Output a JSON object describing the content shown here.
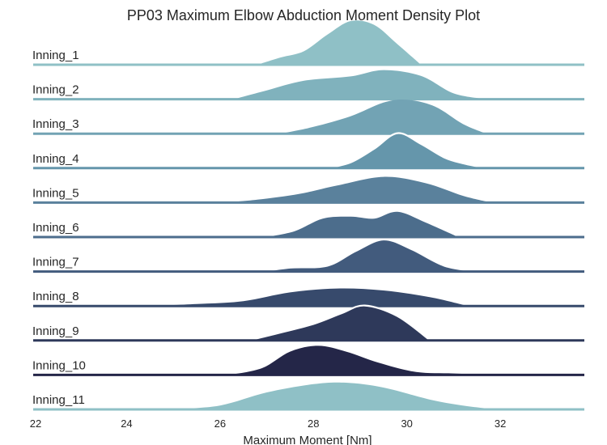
{
  "chart_data": {
    "type": "ridgeline-density",
    "title": "PP03 Maximum Elbow Abduction Moment Density Plot",
    "xlabel": "Maximum Moment [Nm]",
    "ylabel": "",
    "xlim": [
      22,
      33.8
    ],
    "xticks": [
      22,
      24,
      26,
      28,
      30,
      32
    ],
    "grid": false,
    "legend": "none",
    "series": [
      {
        "name": "Inning_1",
        "color": "#8fc0c6",
        "outline": false,
        "points": [
          [
            26.8,
            0
          ],
          [
            27.3,
            0.15
          ],
          [
            27.8,
            0.28
          ],
          [
            28.3,
            0.62
          ],
          [
            28.8,
            0.9
          ],
          [
            29.3,
            0.82
          ],
          [
            29.8,
            0.42
          ],
          [
            30.3,
            0
          ]
        ]
      },
      {
        "name": "Inning_2",
        "color": "#80b2bd",
        "outline": false,
        "points": [
          [
            26.3,
            0
          ],
          [
            27.0,
            0.18
          ],
          [
            27.8,
            0.38
          ],
          [
            28.8,
            0.47
          ],
          [
            29.5,
            0.6
          ],
          [
            30.3,
            0.48
          ],
          [
            31.0,
            0.12
          ],
          [
            31.7,
            0
          ]
        ]
      },
      {
        "name": "Inning_3",
        "color": "#72a3b4",
        "outline": false,
        "points": [
          [
            27.3,
            0
          ],
          [
            28.0,
            0.14
          ],
          [
            28.8,
            0.36
          ],
          [
            29.5,
            0.64
          ],
          [
            30.0,
            0.7
          ],
          [
            30.6,
            0.56
          ],
          [
            31.2,
            0.2
          ],
          [
            31.7,
            0
          ]
        ]
      },
      {
        "name": "Inning_4",
        "color": "#6596ab",
        "outline": true,
        "points": [
          [
            28.3,
            0
          ],
          [
            28.8,
            0.12
          ],
          [
            29.3,
            0.4
          ],
          [
            29.8,
            0.72
          ],
          [
            30.3,
            0.5
          ],
          [
            30.8,
            0.22
          ],
          [
            31.2,
            0.1
          ],
          [
            31.7,
            0
          ]
        ]
      },
      {
        "name": "Inning_5",
        "color": "#5a819c",
        "outline": false,
        "points": [
          [
            26.1,
            0
          ],
          [
            26.8,
            0.06
          ],
          [
            27.7,
            0.18
          ],
          [
            28.5,
            0.35
          ],
          [
            29.5,
            0.53
          ],
          [
            30.4,
            0.4
          ],
          [
            31.2,
            0.14
          ],
          [
            31.8,
            0
          ]
        ]
      },
      {
        "name": "Inning_6",
        "color": "#4c6d8c",
        "outline": false,
        "points": [
          [
            27.0,
            0
          ],
          [
            27.6,
            0.12
          ],
          [
            28.2,
            0.38
          ],
          [
            28.8,
            0.42
          ],
          [
            29.3,
            0.38
          ],
          [
            29.8,
            0.52
          ],
          [
            30.4,
            0.3
          ],
          [
            31.1,
            0
          ]
        ]
      },
      {
        "name": "Inning_7",
        "color": "#425b7d",
        "outline": true,
        "points": [
          [
            26.9,
            0
          ],
          [
            27.5,
            0.08
          ],
          [
            28.3,
            0.12
          ],
          [
            28.9,
            0.42
          ],
          [
            29.5,
            0.66
          ],
          [
            30.1,
            0.46
          ],
          [
            30.8,
            0.12
          ],
          [
            31.5,
            0
          ]
        ]
      },
      {
        "name": "Inning_8",
        "color": "#374a6c",
        "outline": false,
        "points": [
          [
            24.5,
            0
          ],
          [
            25.5,
            0.04
          ],
          [
            26.5,
            0.1
          ],
          [
            27.5,
            0.28
          ],
          [
            28.5,
            0.36
          ],
          [
            29.5,
            0.32
          ],
          [
            30.5,
            0.18
          ],
          [
            31.3,
            0
          ]
        ]
      },
      {
        "name": "Inning_9",
        "color": "#2e395a",
        "outline": true,
        "points": [
          [
            26.6,
            0
          ],
          [
            27.2,
            0.14
          ],
          [
            28.0,
            0.34
          ],
          [
            28.6,
            0.56
          ],
          [
            29.1,
            0.72
          ],
          [
            29.8,
            0.5
          ],
          [
            30.5,
            0
          ]
        ]
      },
      {
        "name": "Inning_10",
        "color": "#242648",
        "outline": false,
        "points": [
          [
            26.2,
            0
          ],
          [
            26.9,
            0.14
          ],
          [
            27.5,
            0.48
          ],
          [
            28.1,
            0.6
          ],
          [
            28.7,
            0.48
          ],
          [
            29.4,
            0.25
          ],
          [
            30.2,
            0.06
          ],
          [
            31.0,
            0.03
          ],
          [
            31.9,
            0
          ]
        ]
      },
      {
        "name": "Inning_11",
        "color": "#8fc0c6",
        "outline": false,
        "points": [
          [
            25.0,
            0
          ],
          [
            26.0,
            0.08
          ],
          [
            27.0,
            0.35
          ],
          [
            28.0,
            0.52
          ],
          [
            28.7,
            0.55
          ],
          [
            29.5,
            0.45
          ],
          [
            30.5,
            0.2
          ],
          [
            31.2,
            0.08
          ],
          [
            31.9,
            0
          ]
        ]
      }
    ]
  }
}
